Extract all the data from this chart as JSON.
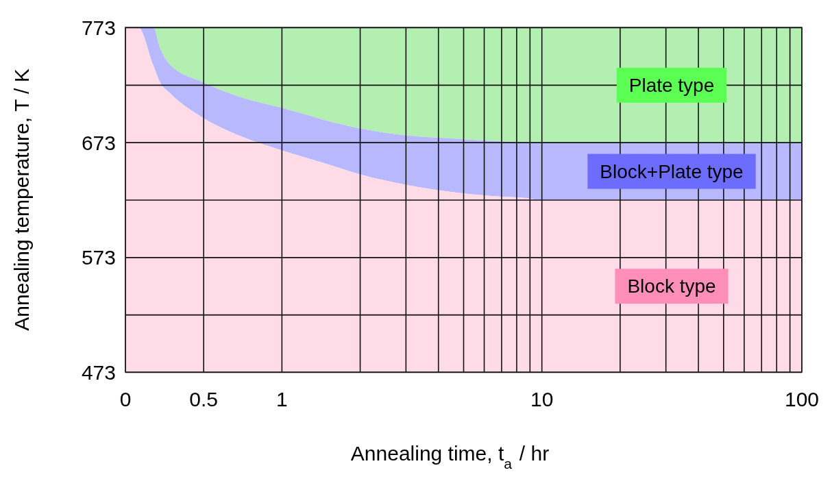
{
  "chart_data": {
    "type": "area",
    "xlabel": "Annealing time, t$_{a}$ / hr",
    "ylabel": "Annealing temperature, T / K",
    "log": "x",
    "grid": true,
    "xlim": [
      0.25,
      100
    ],
    "ylim": [
      473,
      773
    ],
    "xticks": [
      {
        "value": 0.25,
        "label": "0"
      },
      0.5,
      1,
      {
        "value": 2,
        "label": null
      },
      {
        "value": 3,
        "label": null
      },
      {
        "value": 4,
        "label": null
      },
      {
        "value": 5,
        "label": null
      },
      {
        "value": 6,
        "label": null
      },
      {
        "value": 7,
        "label": null
      },
      {
        "value": 8,
        "label": null
      },
      {
        "value": 9,
        "label": null
      },
      10,
      {
        "value": 20,
        "label": null
      },
      {
        "value": 30,
        "label": null
      },
      {
        "value": 40,
        "label": null
      },
      {
        "value": 50,
        "label": null
      },
      {
        "value": 60,
        "label": null
      },
      {
        "value": 70,
        "label": null
      },
      {
        "value": 80,
        "label": null
      },
      {
        "value": 90,
        "label": null
      },
      100
    ],
    "yticks": [
      473,
      {
        "value": 523,
        "label": null
      },
      573,
      {
        "value": 623,
        "label": null
      },
      673,
      {
        "value": 723,
        "label": null
      },
      773
    ],
    "x": [
      0.25,
      0.28,
      0.32,
      0.34,
      0.37,
      0.5,
      0.7,
      1,
      1.6,
      2,
      3,
      4.8,
      6.7,
      9,
      9.6,
      100
    ],
    "series": [
      {
        "name": "Plate type",
        "color": "#b3efb0",
        "values": [
          773,
          773,
          773,
          773,
          773,
          773,
          773,
          773,
          773,
          773,
          773,
          773,
          773,
          773,
          773,
          773
        ]
      },
      {
        "name": "Block+Plate type",
        "color": "#b8b8ff",
        "values": [
          773,
          773,
          773,
          755,
          741,
          725,
          712,
          703,
          690,
          685,
          679,
          676,
          674,
          673,
          673,
          673
        ]
      },
      {
        "name": "Block type",
        "color": "#ffdbe8",
        "values": [
          773,
          773,
          740,
          725,
          716,
          694,
          678,
          666,
          652,
          645,
          636,
          629,
          626,
          624,
          623,
          623
        ]
      }
    ]
  }
}
